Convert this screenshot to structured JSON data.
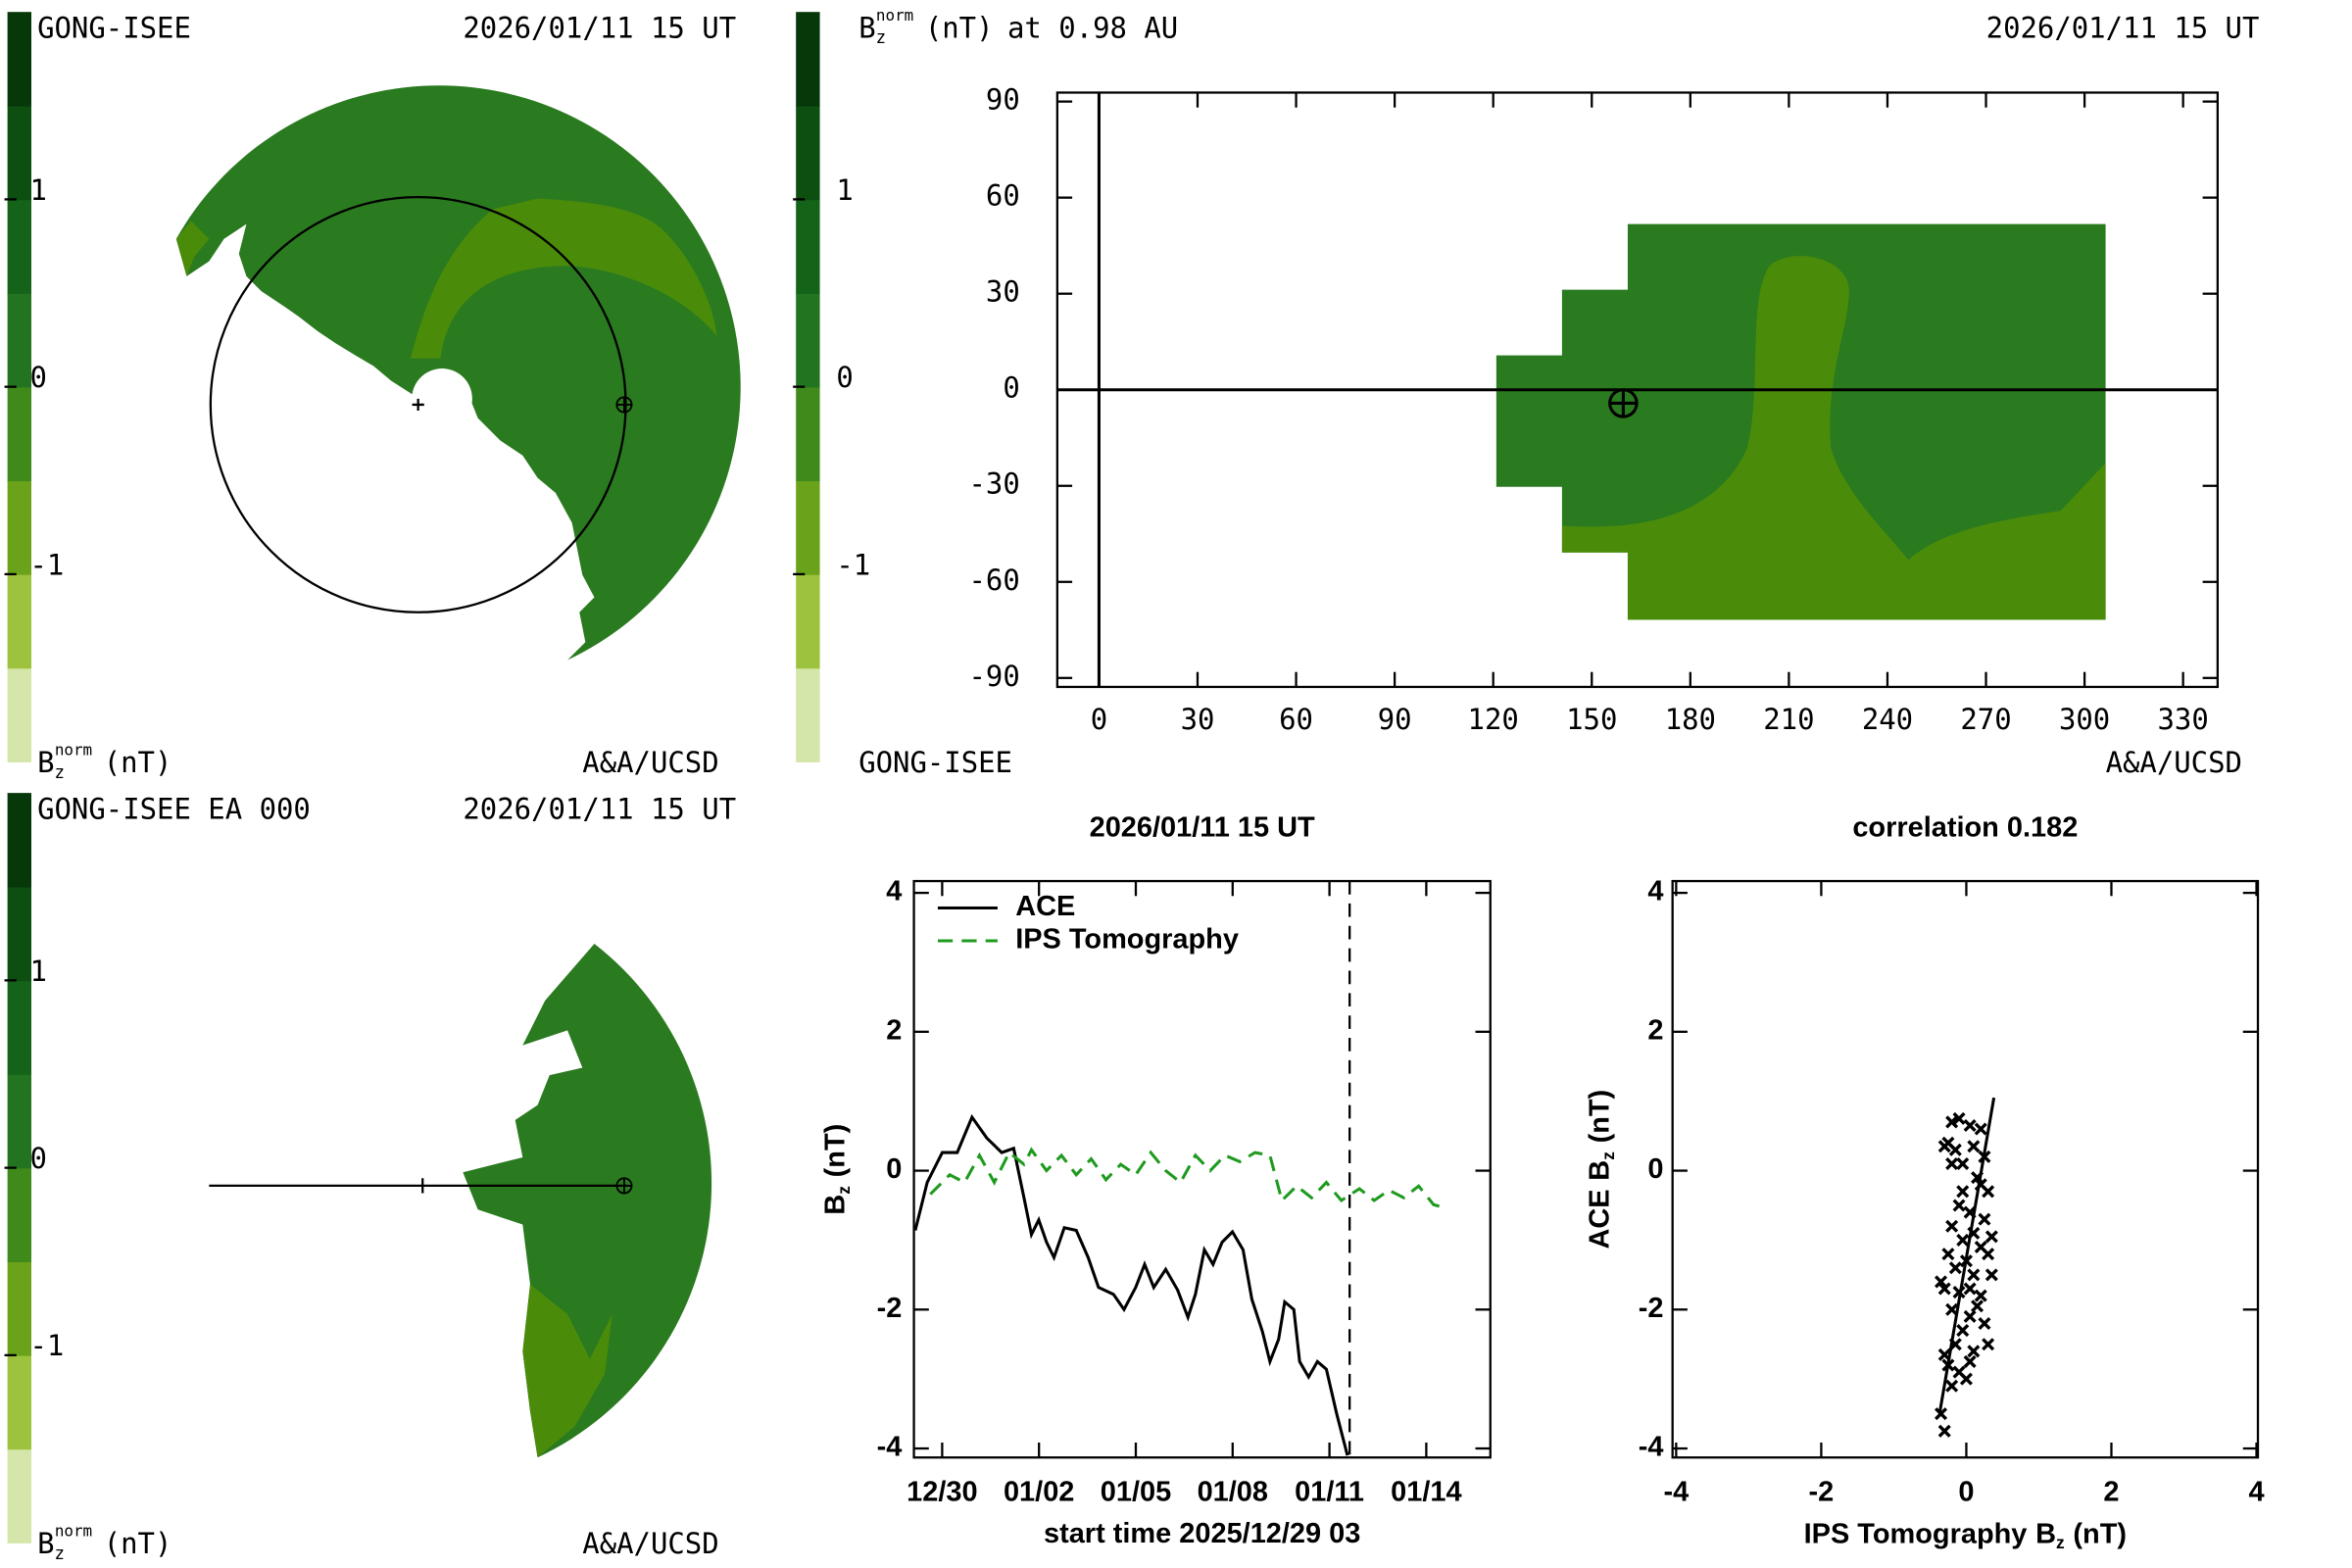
{
  "chart_data": [
    {
      "type": "polar-map",
      "title": "GONG-ISEE",
      "date": "2026/01/11 15 UT",
      "credit": "A&A/UCSD",
      "colors": {
        "main": "#2a7a1f",
        "light": "#4a8c0a"
      },
      "colorbar": {
        "label": {
          "symbol": "B",
          "subscript": "z",
          "superscript": "norm",
          "unit": "(nT)"
        },
        "lim": [
          -2,
          2
        ],
        "ticks": [
          -1,
          0,
          1
        ],
        "colors": [
          "#d4e6a9",
          "#9dc23e",
          "#6aa319",
          "#3f8a1a",
          "#237420",
          "#146318",
          "#0c4f10",
          "#06380a"
        ]
      }
    },
    {
      "type": "map",
      "quantity": {
        "symbol": "B",
        "subscript": "z",
        "superscript": "norm",
        "unit": "(nT)",
        "rest": "at 0.98 AU"
      },
      "date": "2026/01/11 15 UT",
      "source": "GONG-ISEE",
      "credit": "A&A/UCSD",
      "colors": {
        "main": "#2a7a1f",
        "light": "#4a8c0a"
      },
      "zero_lines": true,
      "xlim": [
        -12.7,
        340.5
      ],
      "xticks": [
        0,
        30,
        60,
        90,
        120,
        150,
        180,
        210,
        240,
        270,
        300,
        330
      ],
      "ylim": [
        -92.8,
        92.8
      ],
      "yticks": [
        -90,
        -60,
        -30,
        0,
        30,
        60,
        90
      ],
      "colorbar": {
        "lim": [
          -2,
          2
        ],
        "ticks": [
          -1,
          0,
          1
        ],
        "colors": [
          "#d4e6a9",
          "#9dc23e",
          "#6aa319",
          "#3f8a1a",
          "#237420",
          "#146318",
          "#0c4f10",
          "#06380a"
        ]
      }
    },
    {
      "type": "polar-map",
      "title": "GONG-ISEE EA 000",
      "date": "2026/01/11 15 UT",
      "credit": "A&A/UCSD",
      "colors": {
        "main": "#2a7a1f",
        "light": "#4a8c0a"
      },
      "colorbar": {
        "label": {
          "symbol": "B",
          "subscript": "z",
          "superscript": "norm",
          "unit": "(nT)"
        },
        "lim": [
          -2,
          2
        ],
        "ticks": [
          -1,
          0,
          1
        ],
        "colors": [
          "#d4e6a9",
          "#9dc23e",
          "#6aa319",
          "#3f8a1a",
          "#237420",
          "#146318",
          "#0c4f10",
          "#06380a"
        ]
      }
    },
    {
      "type": "line",
      "title": "2026/01/11 15 UT",
      "xlabel": "start time 2025/12/29 03",
      "ylabel": {
        "symbol": "B",
        "subscript": "z",
        "unit": "(nT)"
      },
      "xlim": [
        0,
        17.86
      ],
      "ylim": [
        -4.13,
        4.17
      ],
      "xticks": [
        {
          "value": 0.875,
          "label": "12/30"
        },
        {
          "value": 3.875,
          "label": "01/02"
        },
        {
          "value": 6.875,
          "label": "01/05"
        },
        {
          "value": 9.875,
          "label": "01/08"
        },
        {
          "value": 12.875,
          "label": "01/11"
        },
        {
          "value": 15.875,
          "label": "01/14"
        }
      ],
      "yticks": [
        -4,
        -2,
        0,
        2,
        4
      ],
      "marker_x": 13.5,
      "legend": "upper left",
      "series": [
        {
          "name": "ACE",
          "color": "#000000",
          "dash": false,
          "x": [
            0.04,
            0.41,
            0.88,
            1.34,
            1.8,
            2.26,
            2.72,
            3.09,
            3.41,
            3.64,
            3.87,
            4.11,
            4.34,
            4.66,
            5.03,
            5.4,
            5.72,
            6.18,
            6.51,
            6.87,
            7.15,
            7.43,
            7.8,
            8.17,
            8.49,
            8.72,
            9.0,
            9.27,
            9.55,
            9.87,
            10.2,
            10.47,
            10.8,
            11.03,
            11.3,
            11.49,
            11.77,
            11.95,
            12.23,
            12.5,
            12.78,
            13.1,
            13.43
          ],
          "values": [
            -0.86,
            -0.17,
            0.26,
            0.26,
            0.77,
            0.47,
            0.26,
            0.32,
            -0.39,
            -0.92,
            -0.71,
            -1.03,
            -1.25,
            -0.82,
            -0.86,
            -1.25,
            -1.68,
            -1.78,
            -2.0,
            -1.68,
            -1.35,
            -1.68,
            -1.42,
            -1.72,
            -2.11,
            -1.78,
            -1.14,
            -1.35,
            -1.03,
            -0.88,
            -1.14,
            -1.85,
            -2.32,
            -2.75,
            -2.43,
            -1.89,
            -2.0,
            -2.75,
            -2.97,
            -2.75,
            -2.86,
            -3.5,
            -4.1
          ]
        },
        {
          "name": "IPS Tomography",
          "color": "#1e9a1e",
          "dash": true,
          "x": [
            0.51,
            1.11,
            1.57,
            2.03,
            2.49,
            2.95,
            3.41,
            3.64,
            4.11,
            4.57,
            5.03,
            5.49,
            5.95,
            6.41,
            6.87,
            7.34,
            7.8,
            8.26,
            8.72,
            9.18,
            9.64,
            10.1,
            10.57,
            11.03,
            11.4,
            11.86,
            12.32,
            12.78,
            13.24,
            13.8,
            14.26,
            14.72,
            15.18,
            15.64,
            16.1,
            16.33
          ],
          "values": [
            -0.34,
            -0.06,
            -0.17,
            0.22,
            -0.17,
            0.26,
            0.09,
            0.3,
            0.0,
            0.22,
            -0.06,
            0.17,
            -0.13,
            0.09,
            -0.06,
            0.26,
            0.0,
            -0.17,
            0.22,
            0.0,
            0.22,
            0.13,
            0.26,
            0.22,
            -0.43,
            -0.22,
            -0.39,
            -0.17,
            -0.43,
            -0.26,
            -0.43,
            -0.28,
            -0.39,
            -0.22,
            -0.49,
            -0.52
          ]
        }
      ]
    },
    {
      "type": "scatter",
      "title": "correlation 0.182",
      "xlabel": {
        "prefix": "IPS Tomography",
        "symbol": "B",
        "subscript": "z",
        "unit": "(nT)"
      },
      "ylabel": {
        "prefix": "ACE",
        "symbol": "B",
        "subscript": "z",
        "unit": "(nT)"
      },
      "xlim": [
        -4.05,
        4.02
      ],
      "ylim": [
        -4.13,
        4.17
      ],
      "xticks": [
        -4,
        -2,
        0,
        2,
        4
      ],
      "yticks": [
        -4,
        -2,
        0,
        2,
        4
      ],
      "color": "#000000",
      "fit_line": {
        "x": [
          -0.37,
          0.38
        ],
        "y": [
          -3.5,
          1.05
        ]
      },
      "x": [
        -0.2,
        -0.1,
        0.05,
        0.2,
        -0.25,
        -0.15,
        0.1,
        0.25,
        -0.3,
        -0.05,
        0.15,
        0.3,
        -0.1,
        0.05,
        0.25,
        -0.2,
        0.1,
        0.35,
        -0.05,
        0.2,
        -0.25,
        0.0,
        0.3,
        -0.15,
        0.1,
        0.35,
        -0.35,
        0.05,
        -0.1,
        0.2,
        -0.3,
        0.15,
        -0.2,
        0.05,
        0.25,
        -0.05,
        0.3,
        -0.15,
        0.1,
        -0.3,
        -0.25,
        -0.1,
        0.05,
        0.0,
        -0.2,
        -0.35,
        -0.3,
        -0.05,
        0.2,
        -0.2
      ],
      "values": [
        0.7,
        0.75,
        0.65,
        0.6,
        0.4,
        0.3,
        0.35,
        0.2,
        0.35,
        0.1,
        -0.1,
        -0.3,
        -0.5,
        -0.6,
        -0.7,
        -0.8,
        -0.9,
        -0.95,
        -1.0,
        -1.1,
        -1.2,
        -1.3,
        -1.2,
        -1.4,
        -1.5,
        -1.5,
        -1.6,
        -1.7,
        -1.75,
        -1.8,
        -1.7,
        -1.95,
        -2.0,
        -2.1,
        -2.2,
        -2.3,
        -2.5,
        -2.5,
        -2.6,
        -2.65,
        -2.8,
        -2.9,
        -2.75,
        -3.0,
        -3.1,
        -3.5,
        -3.75,
        -0.3,
        -0.2,
        0.1
      ]
    }
  ]
}
